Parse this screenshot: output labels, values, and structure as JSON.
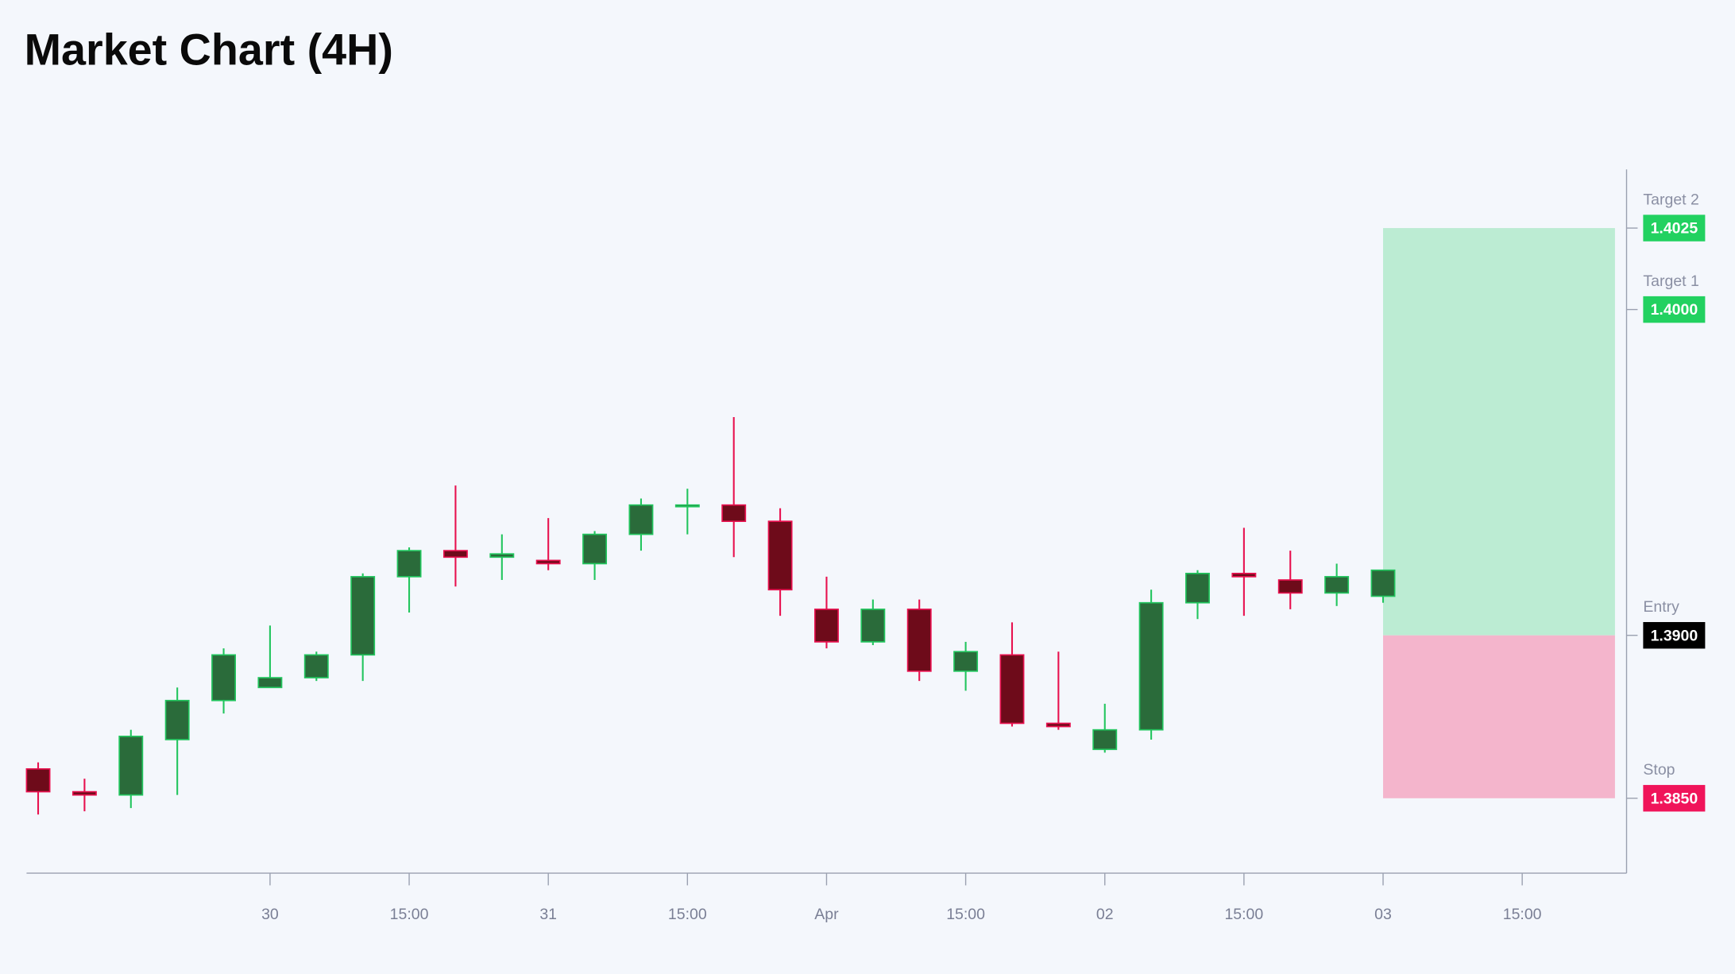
{
  "chart_data": {
    "type": "candlestick",
    "title": "Market Chart (4H)",
    "x": [
      "03-29 04:00",
      "03-29 08:00",
      "03-29 12:00",
      "03-29 16:00",
      "03-29 20:00",
      "03-30 00:00",
      "03-30 04:00",
      "03-30 08:00",
      "03-30 12:00",
      "03-30 16:00",
      "03-30 20:00",
      "03-31 00:00",
      "03-31 04:00",
      "03-31 08:00",
      "03-31 12:00",
      "03-31 16:00",
      "03-31 20:00",
      "04-01 00:00",
      "04-01 04:00",
      "04-01 08:00",
      "04-01 12:00",
      "04-01 16:00",
      "04-01 20:00",
      "04-02 00:00",
      "04-02 04:00",
      "04-02 08:00",
      "04-02 12:00",
      "04-02 16:00",
      "04-02 20:00",
      "04-03 00:00"
    ],
    "open": [
      1.3859,
      1.3852,
      1.3851,
      1.3868,
      1.388,
      1.3884,
      1.3887,
      1.3894,
      1.3918,
      1.3926,
      1.3924,
      1.3923,
      1.3922,
      1.3931,
      1.394,
      1.394,
      1.3935,
      1.3908,
      1.3898,
      1.3908,
      1.3889,
      1.3894,
      1.3873,
      1.3865,
      1.3871,
      1.391,
      1.3919,
      1.3917,
      1.3913,
      1.3912
    ],
    "high": [
      1.3861,
      1.3856,
      1.3871,
      1.3884,
      1.3896,
      1.3903,
      1.3895,
      1.3919,
      1.3927,
      1.3946,
      1.3931,
      1.3936,
      1.3932,
      1.3942,
      1.3945,
      1.3967,
      1.3939,
      1.3918,
      1.3911,
      1.3911,
      1.3898,
      1.3904,
      1.3895,
      1.3879,
      1.3914,
      1.392,
      1.3933,
      1.3926,
      1.3922,
      1.392
    ],
    "low": [
      1.3845,
      1.3846,
      1.3847,
      1.3851,
      1.3876,
      1.3884,
      1.3886,
      1.3886,
      1.3907,
      1.3915,
      1.3917,
      1.392,
      1.3917,
      1.3926,
      1.3931,
      1.3924,
      1.3906,
      1.3896,
      1.3897,
      1.3886,
      1.3883,
      1.3872,
      1.3871,
      1.3864,
      1.3868,
      1.3905,
      1.3906,
      1.3908,
      1.3909,
      1.391
    ],
    "close": [
      1.3852,
      1.3851,
      1.3869,
      1.388,
      1.3894,
      1.3887,
      1.3894,
      1.3918,
      1.3926,
      1.3924,
      1.3925,
      1.3922,
      1.3931,
      1.394,
      1.394,
      1.3935,
      1.3914,
      1.3898,
      1.3908,
      1.3889,
      1.3895,
      1.3873,
      1.3872,
      1.3871,
      1.391,
      1.3919,
      1.3918,
      1.3913,
      1.3918,
      1.392
    ],
    "up_color": "#2a6b3a",
    "up_border": "#22c55e",
    "down_color": "#6e0b1a",
    "down_border": "#e8114f",
    "xlim": [
      "03-29 03:00",
      "04-03 21:00"
    ],
    "xticks": [
      {
        "value": "03-30 00:00",
        "label": "30"
      },
      {
        "value": "03-30 12:00",
        "label": "15:00"
      },
      {
        "value": "03-31 00:00",
        "label": "31"
      },
      {
        "value": "03-31 12:00",
        "label": "15:00"
      },
      {
        "value": "04-01 00:00",
        "label": "Apr"
      },
      {
        "value": "04-01 12:00",
        "label": "15:00"
      },
      {
        "value": "04-02 00:00",
        "label": "02"
      },
      {
        "value": "04-02 12:00",
        "label": "15:00"
      },
      {
        "value": "04-03 00:00",
        "label": "03"
      },
      {
        "value": "04-03 12:00",
        "label": "15:00"
      }
    ],
    "ylim": [
      1.3827,
      1.4043
    ],
    "levels": [
      {
        "name": "Target 2",
        "price": 1.4025,
        "label": "1.4025",
        "color": "#22d160"
      },
      {
        "name": "Target 1",
        "price": 1.4,
        "label": "1.4000",
        "color": "#22d160"
      },
      {
        "name": "Entry",
        "price": 1.39,
        "label": "1.3900",
        "color": "#000000"
      },
      {
        "name": "Stop",
        "price": 1.385,
        "label": "1.3850",
        "color": "#f0145a"
      }
    ],
    "zone_x": [
      "04-03 00:00",
      "04-03 20:00"
    ],
    "profit_color": "#bcecd3",
    "loss_color": "#f4b5cc"
  }
}
